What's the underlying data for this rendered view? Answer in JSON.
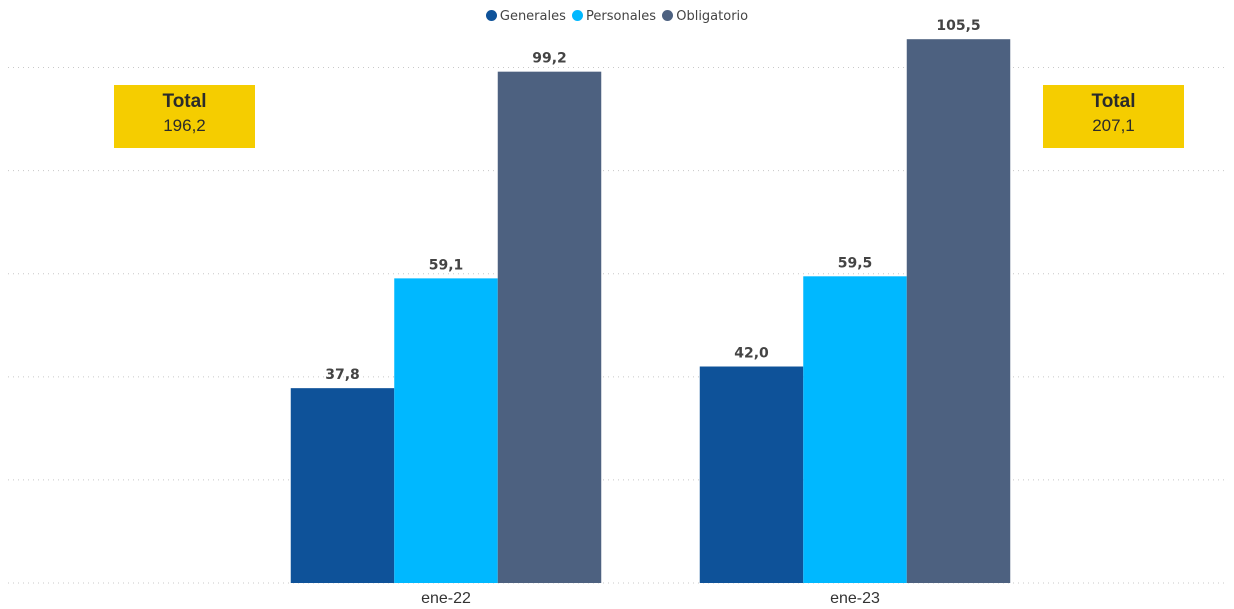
{
  "chart_data": {
    "type": "bar",
    "categories": [
      "ene-22",
      "ene-23"
    ],
    "series": [
      {
        "name": "Generales",
        "values": [
          37.8,
          42.0
        ],
        "labels": [
          "37,8",
          "42,0"
        ],
        "color": "#0e5299"
      },
      {
        "name": "Personales",
        "values": [
          59.1,
          59.5
        ],
        "labels": [
          "59,1",
          "59,5"
        ],
        "color": "#00b8ff"
      },
      {
        "name": "Obligatorio",
        "values": [
          99.2,
          105.5
        ],
        "labels": [
          "99,2",
          "105,5"
        ],
        "color": "#4d6180"
      }
    ],
    "totals": [
      {
        "title": "Total",
        "value": "196,2"
      },
      {
        "title": "Total",
        "value": "207,1"
      }
    ],
    "ylim": [
      0,
      110
    ],
    "grid": true,
    "legend_position": "top-center",
    "colors": {
      "total_box": "#f5cd00",
      "grid": "#c8c8c8",
      "label_text": "#444444"
    }
  }
}
